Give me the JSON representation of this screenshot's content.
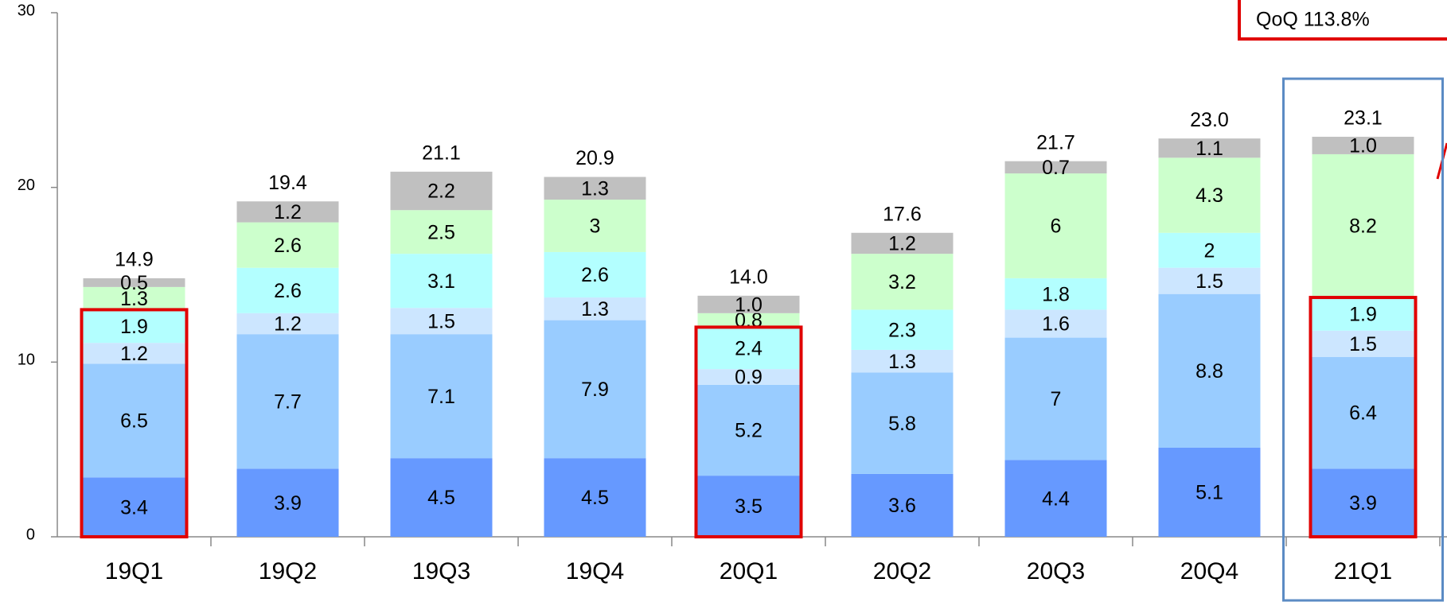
{
  "chart_data": {
    "type": "stacked_bar",
    "categories": [
      "19Q1",
      "19Q2",
      "19Q3",
      "19Q4",
      "20Q1",
      "20Q2",
      "20Q3",
      "20Q4",
      "21Q1"
    ],
    "series": [
      {
        "color": "#6699ff",
        "values": [
          3.4,
          3.9,
          4.5,
          4.5,
          3.5,
          3.6,
          4.4,
          5.1,
          3.9
        ]
      },
      {
        "color": "#99ccff",
        "values": [
          6.5,
          7.7,
          7.1,
          7.9,
          5.2,
          5.8,
          7.0,
          8.8,
          6.4
        ]
      },
      {
        "color": "#cce6ff",
        "values": [
          1.2,
          1.2,
          1.5,
          1.3,
          0.9,
          1.3,
          1.6,
          1.5,
          1.5
        ]
      },
      {
        "color": "#b3ffff",
        "values": [
          1.9,
          2.6,
          3.1,
          2.6,
          2.4,
          2.3,
          1.8,
          2.0,
          1.9
        ]
      },
      {
        "color": "#ccffcc",
        "values": [
          1.3,
          2.6,
          2.5,
          3.0,
          0.8,
          3.2,
          6.0,
          4.3,
          8.2
        ]
      },
      {
        "color": "#c0c0c0",
        "values": [
          0.5,
          1.2,
          2.2,
          1.3,
          1.0,
          1.2,
          0.7,
          1.1,
          1.0
        ],
        "value_labels": [
          "0.5",
          "1.2",
          "2.2",
          "1.3",
          "1.0",
          "1.2",
          "0.7",
          "1.1",
          "1.0"
        ]
      }
    ],
    "totals": [
      14.9,
      19.4,
      21.1,
      20.9,
      14.0,
      17.6,
      21.7,
      23.0,
      23.1
    ],
    "total_labels": [
      "14.9",
      "19.4",
      "21.1",
      "20.9",
      "14.0",
      "17.6",
      "21.7",
      "23.0",
      "23.1"
    ],
    "annotation": "QoQ 113.8%",
    "ylim": [
      0,
      30
    ],
    "yticks": [
      0,
      10,
      20,
      30
    ],
    "grid": false
  }
}
